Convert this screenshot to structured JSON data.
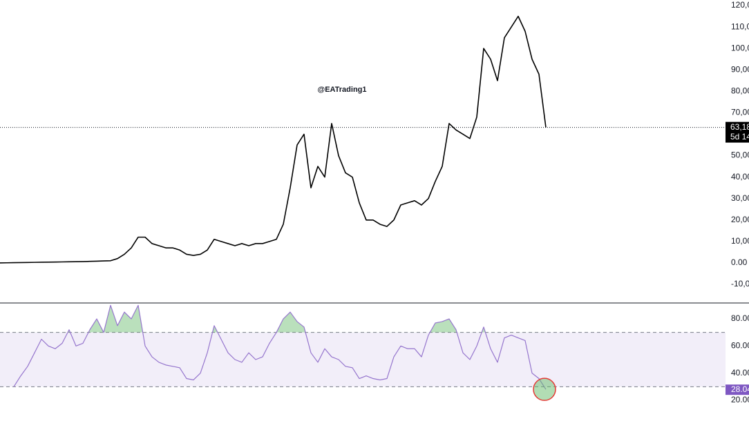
{
  "chart_data": [
    {
      "type": "line",
      "watermark": "@EATrading1",
      "color": "#000000",
      "values": [
        0,
        50,
        100,
        150,
        200,
        250,
        300,
        350,
        400,
        450,
        500,
        550,
        600,
        700,
        800,
        900,
        1000,
        2000,
        4000,
        7000,
        12000,
        12000,
        9000,
        8000,
        7000,
        7000,
        6000,
        4000,
        3500,
        4000,
        6000,
        11000,
        10000,
        9000,
        8000,
        9000,
        8000,
        9000,
        9000,
        10000,
        11000,
        18000,
        35000,
        55000,
        60000,
        35000,
        45000,
        40000,
        65000,
        50000,
        42000,
        40000,
        28000,
        20000,
        20000,
        18000,
        17000,
        20000,
        27000,
        28000,
        29000,
        27000,
        30000,
        38000,
        45000,
        65000,
        62000,
        60000,
        58000,
        68000,
        100000,
        95000,
        85000,
        105000,
        110000,
        115000,
        108000,
        95000,
        88000,
        63180
      ],
      "ylim": [
        -18700,
        122600
      ],
      "yticks": [
        {
          "value": 120000,
          "label": "120,0"
        },
        {
          "value": 110000,
          "label": "110,00"
        },
        {
          "value": 100000,
          "label": "100,00"
        },
        {
          "value": 90000,
          "label": "90,00"
        },
        {
          "value": 80000,
          "label": "80,00"
        },
        {
          "value": 70000,
          "label": "70,00"
        },
        {
          "value": 50000,
          "label": "50,00"
        },
        {
          "value": 40000,
          "label": "40,00"
        },
        {
          "value": 30000,
          "label": "30,00"
        },
        {
          "value": 20000,
          "label": "20,00"
        },
        {
          "value": 10000,
          "label": "10,00"
        },
        {
          "value": 0,
          "label": "0.00"
        },
        {
          "value": -10000,
          "label": "-10,00"
        }
      ],
      "current": {
        "value": 63180,
        "label": "63,18"
      },
      "countdown": "5d 14"
    },
    {
      "type": "line",
      "color": "#9575cd",
      "values": [
        null,
        null,
        30,
        38,
        45,
        55,
        65,
        60,
        58,
        62,
        72,
        60,
        62,
        72,
        80,
        70,
        90,
        75,
        85,
        80,
        90,
        60,
        52,
        48,
        46,
        45,
        44,
        36,
        35,
        40,
        55,
        75,
        65,
        55,
        50,
        48,
        55,
        50,
        52,
        62,
        70,
        80,
        85,
        78,
        74,
        55,
        48,
        58,
        52,
        50,
        45,
        44,
        36,
        38,
        36,
        35,
        36,
        52,
        60,
        58,
        58,
        52,
        68,
        77,
        78,
        80,
        72,
        55,
        50,
        60,
        74,
        58,
        48,
        66,
        68,
        66,
        64,
        40,
        36,
        28.04
      ],
      "ylim": [
        14.9,
        91.2
      ],
      "yticks": [
        {
          "value": 80,
          "label": "80.00"
        },
        {
          "value": 60,
          "label": "60.00"
        },
        {
          "value": 40,
          "label": "40.00"
        },
        {
          "value": 20,
          "label": "20.00"
        }
      ],
      "overbought": 70,
      "oversold": 30,
      "current": {
        "value": 28.04,
        "label": "28.04"
      }
    }
  ]
}
